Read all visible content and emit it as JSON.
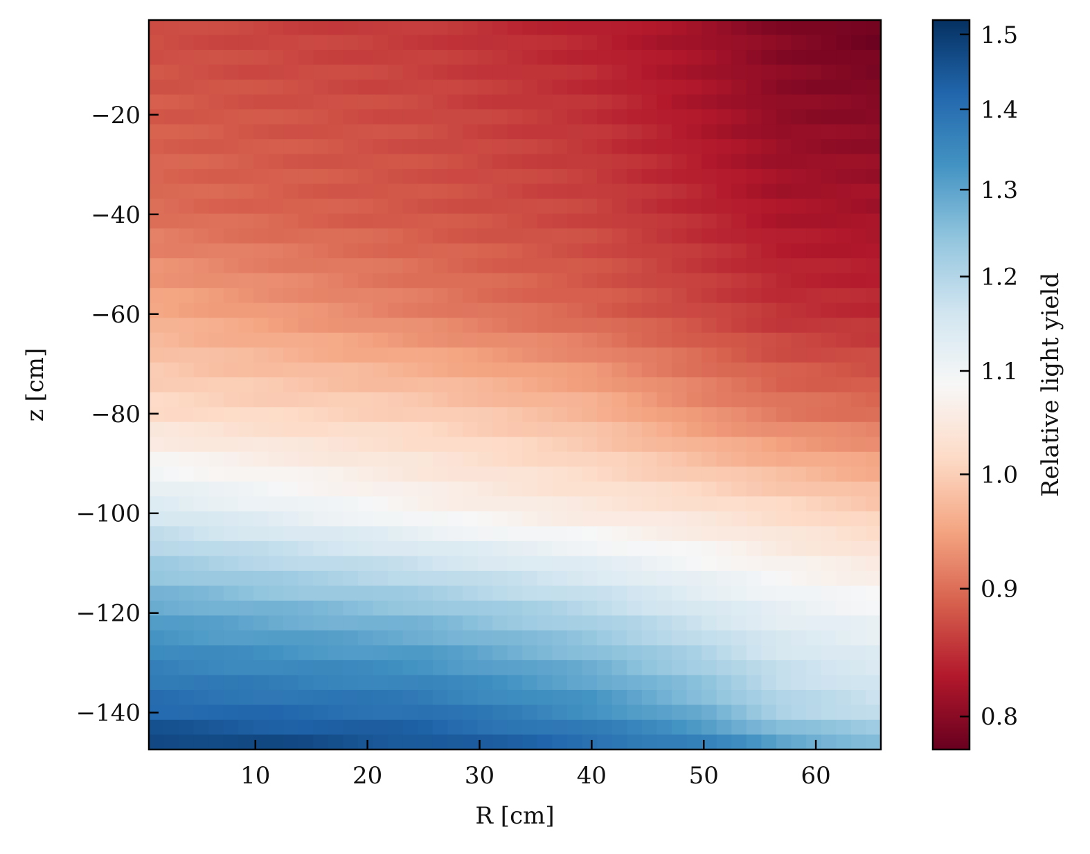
{
  "chart_data": {
    "type": "heatmap",
    "title": "",
    "xlabel": "R [cm]",
    "ylabel": "z [cm]",
    "xlim": [
      0.5,
      65.8
    ],
    "ylim": [
      -147.4,
      -1.0
    ],
    "xticks": [
      {
        "value": 10,
        "label": "10"
      },
      {
        "value": 20,
        "label": "20"
      },
      {
        "value": 30,
        "label": "30"
      },
      {
        "value": 40,
        "label": "40"
      },
      {
        "value": 50,
        "label": "50"
      },
      {
        "value": 60,
        "label": "60"
      }
    ],
    "yticks": [
      {
        "value": -20,
        "label": "−20"
      },
      {
        "value": -40,
        "label": "−40"
      },
      {
        "value": -60,
        "label": "−60"
      },
      {
        "value": -80,
        "label": "−80"
      },
      {
        "value": -100,
        "label": "−100"
      },
      {
        "value": -120,
        "label": "−120"
      },
      {
        "value": -140,
        "label": "−140"
      }
    ],
    "colorbar": {
      "label": "Relative light yield",
      "colormap": "RdBu",
      "scale": "log",
      "range": [
        0.776,
        1.52
      ],
      "colors_low_to_high": [
        "#67001f",
        "#b2182b",
        "#d6604d",
        "#f4a582",
        "#fddbc7",
        "#f7f7f7",
        "#d1e5f0",
        "#92c5de",
        "#4393c3",
        "#2166ac",
        "#053061"
      ],
      "ticks": [
        {
          "value": 0.8,
          "label": "0.8"
        },
        {
          "value": 0.9,
          "label": "0.9"
        },
        {
          "value": 1.0,
          "label": "1.0"
        },
        {
          "value": 1.1,
          "label": "1.1"
        },
        {
          "value": 1.2,
          "label": "1.2"
        },
        {
          "value": 1.3,
          "label": "1.3"
        },
        {
          "value": 1.4,
          "label": "1.4"
        },
        {
          "value": 1.5,
          "label": "1.5"
        }
      ]
    },
    "grid": false,
    "grid_shape": {
      "n_r_bins": 49,
      "n_z_bins": 49
    },
    "profile_r": [
      0,
      25,
      40,
      50,
      57,
      65.8
    ],
    "profile_z": [
      -1,
      -20,
      -40,
      -60,
      -80,
      -100,
      -120,
      -140,
      -147.4
    ],
    "values": [
      [
        0.87,
        0.855,
        0.835,
        0.815,
        0.795,
        0.778
      ],
      [
        0.885,
        0.87,
        0.85,
        0.825,
        0.805,
        0.8
      ],
      [
        0.9,
        0.88,
        0.865,
        0.842,
        0.825,
        0.82
      ],
      [
        0.96,
        0.915,
        0.89,
        0.868,
        0.85,
        0.845
      ],
      [
        1.02,
        1.0,
        0.97,
        0.93,
        0.91,
        0.9
      ],
      [
        1.15,
        1.08,
        1.05,
        1.035,
        1.02,
        1.0
      ],
      [
        1.3,
        1.25,
        1.2,
        1.15,
        1.12,
        1.1
      ],
      [
        1.42,
        1.4,
        1.34,
        1.28,
        1.21,
        1.18
      ],
      [
        1.5,
        1.46,
        1.42,
        1.38,
        1.32,
        1.28
      ]
    ]
  }
}
